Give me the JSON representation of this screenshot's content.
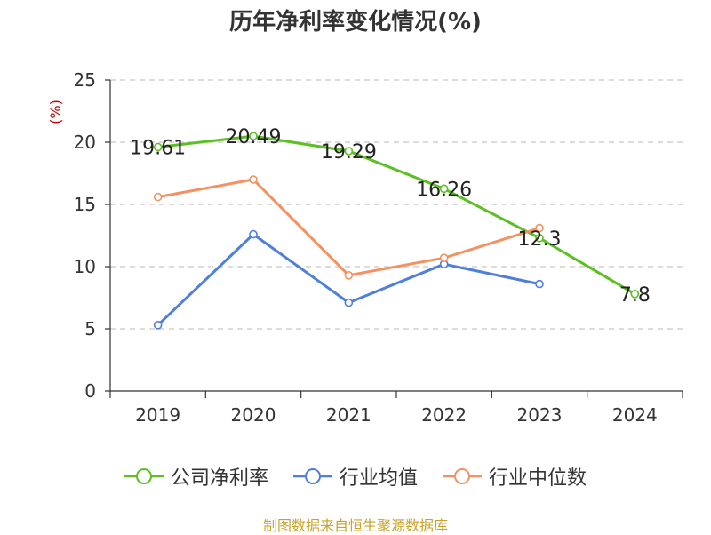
{
  "title": "历年净利率变化情况(%)",
  "source": "制图数据来自恒生聚源数据库",
  "colors": {
    "company": "#5cbf22",
    "industry_avg": "#4f7fdb",
    "industry_median": "#f59060",
    "unit_label": "#cc0000",
    "grid": "#c8c8c8",
    "axis": "#333333",
    "source": "#c9a227"
  },
  "chart_data": {
    "type": "line",
    "title": "历年净利率变化情况(%)",
    "ylabel": "(%)",
    "xlabel": "",
    "categories": [
      "2019",
      "2020",
      "2021",
      "2022",
      "2023",
      "2024"
    ],
    "ylim": [
      0,
      25
    ],
    "yticks": [
      0,
      5,
      10,
      15,
      20,
      25
    ],
    "grid": true,
    "legend_position": "bottom",
    "series": [
      {
        "name": "公司净利率",
        "values": [
          19.61,
          20.49,
          19.29,
          16.26,
          12.3,
          7.8
        ],
        "labels": [
          "19.61",
          "20.49",
          "19.29",
          "16.26",
          "12.3",
          "7.8"
        ],
        "color_key": "company"
      },
      {
        "name": "行业均值",
        "values": [
          5.3,
          12.6,
          7.1,
          10.2,
          8.6,
          null
        ],
        "color_key": "industry_avg"
      },
      {
        "name": "行业中位数",
        "values": [
          15.6,
          17.0,
          9.3,
          10.7,
          13.1,
          null
        ],
        "color_key": "industry_median"
      }
    ]
  }
}
